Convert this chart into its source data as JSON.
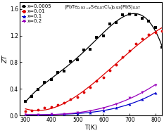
{
  "title_text": "(PbTe$_{0.93-x}$Se$_{0.07}$Cl$_x)_{0.93}$(PbS)$_{0.07}$",
  "xlabel": "T(K)",
  "ylabel": "ZT",
  "xlim": [
    278,
    822
  ],
  "ylim": [
    0,
    1.7
  ],
  "xticks": [
    300,
    400,
    500,
    600,
    700,
    800
  ],
  "yticks": [
    0.0,
    0.4,
    0.8,
    1.2,
    1.6
  ],
  "series": [
    {
      "label": "x=0.0005",
      "color": "#000000",
      "marker": "s",
      "markersize": 2.8,
      "poly_deg": 4,
      "T": [
        300,
        323,
        348,
        373,
        398,
        423,
        448,
        473,
        498,
        523,
        548,
        573,
        598,
        623,
        648,
        673,
        698,
        723,
        748,
        773,
        798,
        823
      ],
      "ZT": [
        0.21,
        0.29,
        0.39,
        0.5,
        0.54,
        0.65,
        0.67,
        0.82,
        0.84,
        0.98,
        1.0,
        1.18,
        1.2,
        1.38,
        1.4,
        1.51,
        1.53,
        1.51,
        1.46,
        1.42,
        1.32,
        1.03
      ]
    },
    {
      "label": "x=0.01",
      "color": "#dd0000",
      "marker": "o",
      "markersize": 2.8,
      "poly_deg": 3,
      "T": [
        300,
        323,
        348,
        373,
        398,
        423,
        448,
        473,
        498,
        523,
        548,
        573,
        598,
        623,
        648,
        673,
        698,
        723,
        748,
        773,
        798,
        823
      ],
      "ZT": [
        0.06,
        0.07,
        0.09,
        0.12,
        0.13,
        0.16,
        0.19,
        0.24,
        0.28,
        0.35,
        0.42,
        0.52,
        0.57,
        0.68,
        0.76,
        0.88,
        0.97,
        1.08,
        1.15,
        1.22,
        1.25,
        1.27
      ]
    },
    {
      "label": "x=0.1",
      "color": "#0000cc",
      "marker": "^",
      "markersize": 2.8,
      "poly_deg": 3,
      "T": [
        300,
        348,
        398,
        448,
        498,
        548,
        598,
        648,
        698,
        748,
        798
      ],
      "ZT": [
        0.005,
        0.008,
        0.012,
        0.018,
        0.028,
        0.048,
        0.075,
        0.115,
        0.165,
        0.24,
        0.34
      ]
    },
    {
      "label": "x=0.2",
      "color": "#9900bb",
      "marker": "v",
      "markersize": 2.8,
      "poly_deg": 3,
      "T": [
        300,
        348,
        398,
        448,
        498,
        548,
        598,
        648,
        698,
        748,
        798
      ],
      "ZT": [
        0.01,
        0.013,
        0.018,
        0.025,
        0.038,
        0.065,
        0.11,
        0.175,
        0.26,
        0.345,
        0.46
      ]
    }
  ],
  "background_color": "#ffffff",
  "figsize": [
    2.33,
    1.89
  ],
  "dpi": 100
}
